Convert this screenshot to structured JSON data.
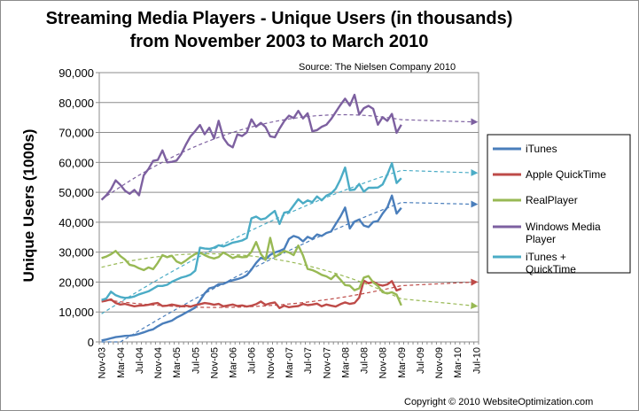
{
  "chart_data": {
    "type": "line",
    "title_lines": [
      "Streaming Media Players - Unique Users (in thousands)",
      "from November 2003 to March 2010"
    ],
    "source": "Source: The Nielsen Company 2010",
    "copyright": "Copyright © 2010 WebsiteOptimization.com",
    "ylabel": "Unique Users (1000s)",
    "xlabel": "",
    "ylim": [
      0,
      90000
    ],
    "y_ticks": [
      "0",
      "10,000",
      "20,000",
      "30,000",
      "40,000",
      "50,000",
      "60,000",
      "70,000",
      "80,000",
      "90,000"
    ],
    "x_tick_labels": [
      "Nov-03",
      "Mar-04",
      "Jul-04",
      "Nov-04",
      "Mar-05",
      "Jul-05",
      "Nov-05",
      "Mar-06",
      "Jul-06",
      "Nov-06",
      "Mar-07",
      "Jul-07",
      "Nov-07",
      "Mar-08",
      "Jul-08",
      "Nov-08",
      "Mar-09",
      "Jul-09",
      "Nov-09",
      "Mar-10",
      "Jul-10"
    ],
    "x_start": "2003-11",
    "x_end": "2010-07",
    "legend": "right",
    "trendlines": "dashed with arrow, extending to Jul-10",
    "series": [
      {
        "name": "iTunes",
        "color": "#4a7ebb",
        "trend_end": 46000,
        "values": [
          500,
          800,
          1200,
          1600,
          1800,
          2000,
          2100,
          2300,
          2700,
          3200,
          3800,
          4200,
          5200,
          6100,
          6600,
          7100,
          8100,
          8900,
          9800,
          10600,
          11500,
          13800,
          16200,
          17900,
          18300,
          19300,
          19400,
          20100,
          20600,
          21000,
          21500,
          22300,
          24200,
          26400,
          28100,
          27600,
          29100,
          29900,
          30400,
          31100,
          34400,
          35400,
          34900,
          33600,
          35100,
          34400,
          35900,
          35400,
          36400,
          36900,
          39400,
          41900,
          44900,
          37900,
          40200,
          40900,
          38900,
          38400,
          40100,
          40400,
          42900,
          44900,
          48900,
          42900,
          44800
        ]
      },
      {
        "name": "Apple QuickTime",
        "color": "#be4b48",
        "trend_end": 20000,
        "values": [
          13500,
          13800,
          14200,
          13000,
          12500,
          12700,
          12300,
          11900,
          12100,
          12200,
          12400,
          12800,
          13000,
          12000,
          12100,
          12500,
          12200,
          11900,
          12100,
          11800,
          12300,
          12600,
          13000,
          12800,
          12400,
          12700,
          11900,
          12200,
          12500,
          12000,
          12200,
          11800,
          12100,
          12600,
          13500,
          12400,
          12900,
          13200,
          11300,
          12100,
          11600,
          11800,
          12000,
          12700,
          12300,
          12500,
          12800,
          11900,
          12500,
          12100,
          11800,
          12600,
          13200,
          12700,
          13000,
          14800,
          20500,
          19600,
          20100,
          19200,
          18800,
          19200,
          20300,
          17200,
          17800
        ]
      },
      {
        "name": "RealPlayer",
        "color": "#98b954",
        "trend_end": 12000,
        "values": [
          28000,
          28500,
          29300,
          30400,
          28700,
          27500,
          25800,
          25400,
          24600,
          24000,
          24900,
          24300,
          26400,
          29000,
          28300,
          28800,
          26900,
          26200,
          27200,
          28400,
          29400,
          29900,
          29000,
          28300,
          27900,
          28400,
          29900,
          29000,
          28000,
          28600,
          28300,
          28400,
          30100,
          33400,
          29400,
          27400,
          34800,
          28400,
          29400,
          30400,
          29900,
          29000,
          32200,
          28900,
          24400,
          24000,
          23300,
          22400,
          21900,
          21000,
          22500,
          20800,
          19000,
          18800,
          17300,
          17900,
          21500,
          22000,
          19900,
          18700,
          16600,
          16200,
          16600,
          15800,
          12200
        ]
      },
      {
        "name": "Windows Media Player",
        "color": "#7d60a0",
        "trend_end": 73500,
        "values": [
          47500,
          49000,
          51000,
          54000,
          52500,
          50500,
          49500,
          50800,
          49000,
          55700,
          57800,
          60500,
          60800,
          64000,
          60000,
          60200,
          60600,
          62800,
          66000,
          68700,
          70500,
          72500,
          69400,
          71600,
          68000,
          73900,
          68200,
          66000,
          65000,
          69400,
          68800,
          70000,
          74400,
          71900,
          73200,
          71800,
          68700,
          68400,
          71300,
          73800,
          75600,
          74800,
          77200,
          74700,
          76400,
          70400,
          70800,
          71900,
          72600,
          74500,
          76800,
          79200,
          81300,
          79000,
          82600,
          76000,
          78100,
          78900,
          77900,
          72600,
          75100,
          73900,
          76200,
          69900,
          72600
        ]
      },
      {
        "name": "iTunes + QuickTime",
        "color": "#4bacc6",
        "trend_end": 56500,
        "values": [
          14000,
          14500,
          16800,
          15600,
          15000,
          14700,
          14800,
          15200,
          15900,
          16400,
          16900,
          17800,
          18700,
          18700,
          19100,
          20100,
          20800,
          21500,
          21900,
          22500,
          23800,
          31500,
          31200,
          31100,
          31500,
          32300,
          31900,
          32500,
          33200,
          33500,
          33900,
          34700,
          41300,
          41900,
          40900,
          41300,
          42600,
          43800,
          39400,
          43200,
          43500,
          45600,
          47700,
          46300,
          47300,
          46700,
          48600,
          47300,
          48900,
          49600,
          51200,
          54300,
          58300,
          50700,
          50900,
          52800,
          50200,
          51500,
          51500,
          51600,
          52600,
          55900,
          59700,
          53100,
          54700
        ]
      }
    ]
  }
}
